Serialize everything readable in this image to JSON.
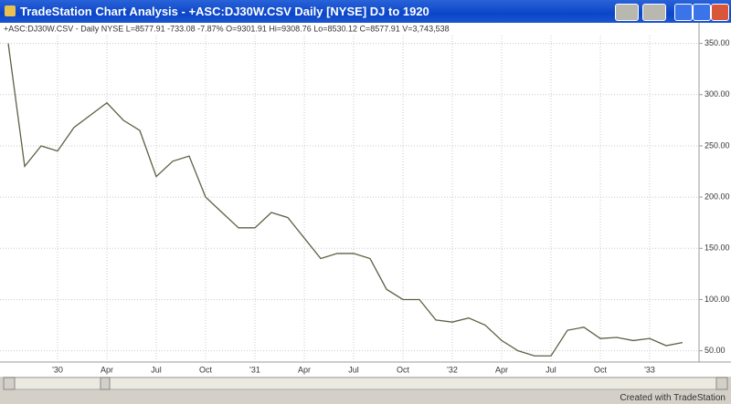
{
  "window": {
    "title": "TradeStation Chart Analysis - +ASC:DJ30W.CSV  Daily  [NYSE] DJ to 1920",
    "footer": "Created with TradeStation"
  },
  "chart_data": {
    "type": "line",
    "subtitle": "+ASC:DJ30W.CSV - Daily  NYSE  L=8577.91  -733.08  -7.87%  O=9301.91  Hi=9308.76  Lo=8530.12  C=8577.91  V=3,743,538",
    "x": [
      "1929-10",
      "1929-11",
      "1929-12",
      "1930-01",
      "1930-02",
      "1930-03",
      "1930-04",
      "1930-05",
      "1930-06",
      "1930-07",
      "1930-08",
      "1930-09",
      "1930-10",
      "1930-11",
      "1930-12",
      "1931-01",
      "1931-02",
      "1931-03",
      "1931-04",
      "1931-05",
      "1931-06",
      "1931-07",
      "1931-08",
      "1931-09",
      "1931-10",
      "1931-11",
      "1931-12",
      "1932-01",
      "1932-02",
      "1932-03",
      "1932-04",
      "1932-05",
      "1932-06",
      "1932-07",
      "1932-08",
      "1932-09",
      "1932-10",
      "1932-11",
      "1932-12",
      "1933-01",
      "1933-02",
      "1933-03"
    ],
    "series": [
      {
        "color": "#5f5f45",
        "values": [
          350,
          230,
          250,
          245,
          268,
          280,
          292,
          275,
          265,
          220,
          235,
          240,
          200,
          185,
          170,
          170,
          185,
          180,
          160,
          140,
          145,
          145,
          140,
          110,
          100,
          100,
          80,
          78,
          82,
          75,
          60,
          50,
          45,
          45,
          70,
          73,
          62,
          63,
          60,
          62,
          55,
          58
        ]
      }
    ],
    "xlim": [
      "1929-10",
      "1933-04"
    ],
    "xticks": [
      {
        "value": "1930-01",
        "label": "'30"
      },
      {
        "value": "1930-04",
        "label": "Apr"
      },
      {
        "value": "1930-07",
        "label": "Jul"
      },
      {
        "value": "1930-10",
        "label": "Oct"
      },
      {
        "value": "1931-01",
        "label": "'31"
      },
      {
        "value": "1931-04",
        "label": "Apr"
      },
      {
        "value": "1931-07",
        "label": "Jul"
      },
      {
        "value": "1931-10",
        "label": "Oct"
      },
      {
        "value": "1932-01",
        "label": "'32"
      },
      {
        "value": "1932-04",
        "label": "Apr"
      },
      {
        "value": "1932-07",
        "label": "Jul"
      },
      {
        "value": "1932-10",
        "label": "Oct"
      },
      {
        "value": "1933-01",
        "label": "'33"
      }
    ],
    "ylim": [
      39,
      363
    ],
    "yticks": [
      {
        "value": 50,
        "label": "50.00"
      },
      {
        "value": 100,
        "label": "100.00"
      },
      {
        "value": 150,
        "label": "150.00"
      },
      {
        "value": 200,
        "label": "200.00"
      },
      {
        "value": 250,
        "label": "250.00"
      },
      {
        "value": 300,
        "label": "300.00"
      },
      {
        "value": 350,
        "label": "350.00"
      }
    ],
    "grid": true
  }
}
